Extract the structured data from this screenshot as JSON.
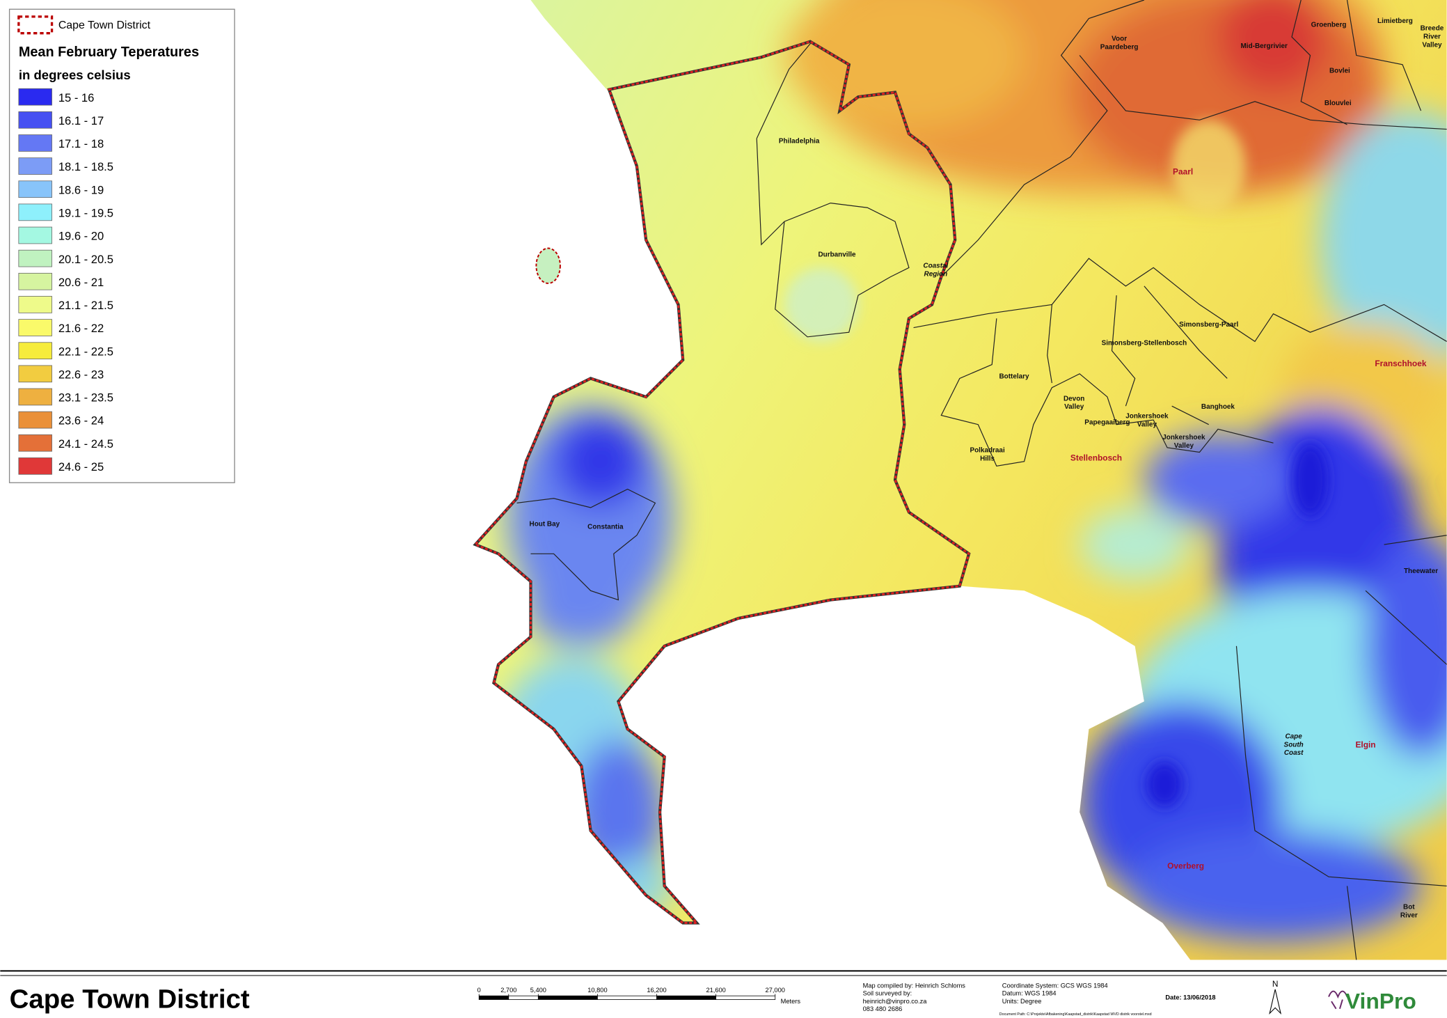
{
  "legend": {
    "boundary_label": "Cape Town District",
    "title": "Mean February Teperatures",
    "subtitle": "in degrees celsius",
    "items": [
      {
        "label": "15 - 16",
        "color": "#2a2af0"
      },
      {
        "label": "16.1 - 17",
        "color": "#4650f2"
      },
      {
        "label": "17.1 - 18",
        "color": "#6478f4"
      },
      {
        "label": "18.1 - 18.5",
        "color": "#7c9cf6"
      },
      {
        "label": "18.6 - 19",
        "color": "#88c4fa"
      },
      {
        "label": "19.1 - 19.5",
        "color": "#8ef0fc"
      },
      {
        "label": "19.6 - 20",
        "color": "#a4f8e2"
      },
      {
        "label": "20.1 - 20.5",
        "color": "#c0f2c0"
      },
      {
        "label": "20.6 - 21",
        "color": "#d6f4a0"
      },
      {
        "label": "21.1 - 21.5",
        "color": "#eefa8a"
      },
      {
        "label": "21.6 - 22",
        "color": "#fafa6a"
      },
      {
        "label": "22.1 - 22.5",
        "color": "#f6ec3c"
      },
      {
        "label": "22.6 - 23",
        "color": "#f2cc40"
      },
      {
        "label": "23.1 - 23.5",
        "color": "#eeb040"
      },
      {
        "label": "23.6 - 24",
        "color": "#ea9038"
      },
      {
        "label": "24.1 - 24.5",
        "color": "#e47038"
      },
      {
        "label": "24.6 - 25",
        "color": "#e03838"
      }
    ]
  },
  "map_labels": [
    [
      "Voor",
      "Paardeberg"
    ],
    [
      "Groenberg"
    ],
    [
      "Limietberg"
    ],
    [
      "Breede",
      "River",
      "Valley"
    ],
    [
      "Mid-Bergrivier"
    ],
    [
      "Bovlei"
    ],
    [
      "Blouvlei"
    ],
    [
      "Philadelphia"
    ],
    [
      "Paarl"
    ],
    [
      "Durbanville"
    ],
    [
      "Coastal",
      "Region"
    ],
    [
      "Simonsberg-Paarl"
    ],
    [
      "Simonsberg-Stellenbosch"
    ],
    [
      "Franschhoek"
    ],
    [
      "Bottelary"
    ],
    [
      "Devon",
      "Valley"
    ],
    [
      "Papegaaiberg"
    ],
    [
      "Jonkershoek",
      "Valley"
    ],
    [
      "Banghoek"
    ],
    [
      "Jonkershoek",
      "Valley"
    ],
    [
      "Polkadraai",
      "Hills"
    ],
    [
      "Stellenbosch"
    ],
    [
      "Hout Bay"
    ],
    [
      "Constantia"
    ],
    [
      "Theewater"
    ],
    [
      "Cape",
      "South",
      "Coast"
    ],
    [
      "Elgin"
    ],
    [
      "Overberg"
    ],
    [
      "Bot",
      "River"
    ]
  ],
  "footer": {
    "title": "Cape Town District",
    "scale_bar": {
      "ticks": [
        {
          "value": 0,
          "label": "0"
        },
        {
          "value": 2700,
          "label": "2,700"
        },
        {
          "value": 5400,
          "label": "5,400"
        },
        {
          "value": 10800,
          "label": "10,800"
        },
        {
          "value": 16200,
          "label": "16,200"
        },
        {
          "value": 21600,
          "label": "21,600"
        },
        {
          "value": 27000,
          "label": "27,000"
        }
      ],
      "unit": "Meters"
    },
    "credits": [
      "Map compiled by: Heinrich Schloms",
      "Soil surveyed by:",
      "heinrich@vinpro.co.za",
      "083 480 2686"
    ],
    "coordinates": [
      "Coordinate System: GCS WGS 1984",
      "Datum: WGS 1984",
      "Units: Degree"
    ],
    "date": "Date: 13/06/2018",
    "document_path": "Document Path: C:\\Projekte\\Afbakening\\Kaapstad_distrik\\Kaapstad WVD distrik voorstel.mxd",
    "north": "N",
    "logo": "VinPro"
  }
}
